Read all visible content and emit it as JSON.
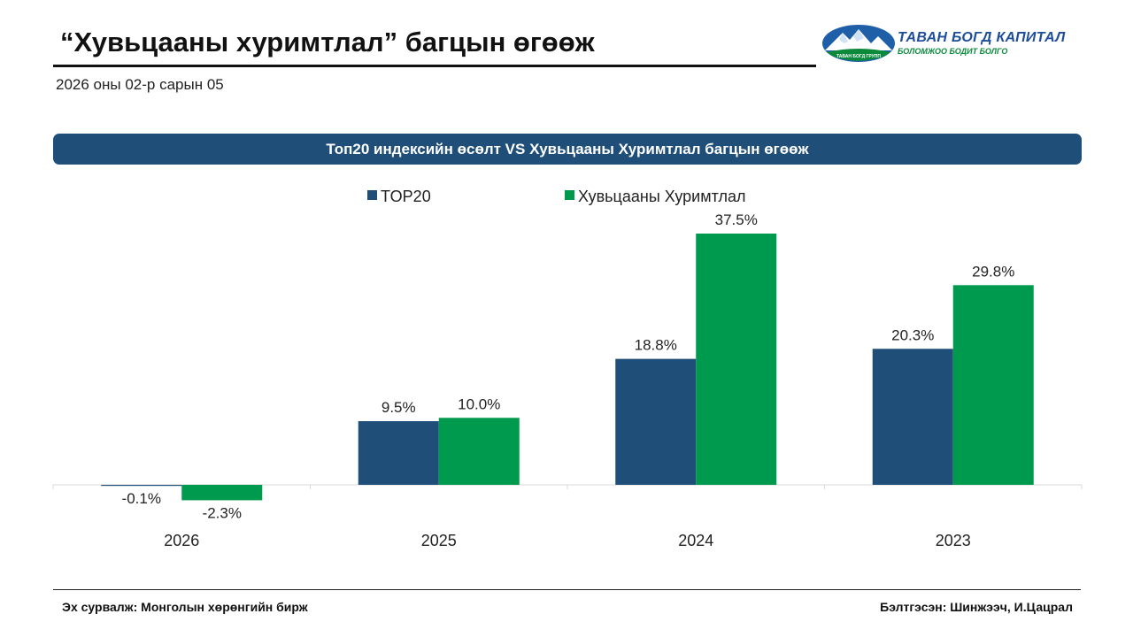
{
  "header": {
    "title": "“Хувьцааны хуримтлал” багцын өгөөж",
    "date": "2026 оны 02-р сарын 05"
  },
  "logo": {
    "name": "ТАВАН БОГД КАПИТАЛ",
    "tagline": "БОЛОМЖОО БОДИТ БОЛГО",
    "small_text": "ТАВАН БОГД ГРУПП",
    "colors": {
      "blue": "#1f4e99",
      "green": "#0b8a3c"
    }
  },
  "banner": {
    "text": "Топ20 индексийн өсөлт VS Хувьцааны Хуримтлал багцын өгөөж"
  },
  "chart_data": {
    "type": "bar",
    "title": "Топ20 индексийн өсөлт VS Хувьцааны Хуримтлал багцын өгөөж",
    "categories": [
      "2026",
      "2025",
      "2024",
      "2023"
    ],
    "series": [
      {
        "name": "TOP20",
        "values": [
          -0.1,
          9.5,
          18.8,
          20.3
        ],
        "labels": [
          "-0.1%",
          "9.5%",
          "18.8%",
          "20.3%"
        ],
        "color": "#1f4e79"
      },
      {
        "name": "Хувьцааны Хуримтлал",
        "values": [
          -2.3,
          10.0,
          37.5,
          29.8
        ],
        "labels": [
          "-2.3%",
          "10.0%",
          "37.5%",
          "29.8%"
        ],
        "color": "#009a4e"
      }
    ],
    "legend_position": "top",
    "grid": false,
    "xlabel": "",
    "ylabel": ""
  },
  "footer": {
    "source": "Эх сурвалж: Монголын хөрөнгийн бирж",
    "author": "Бэлтгэсэн: Шинжээч, И.Цацрал"
  }
}
